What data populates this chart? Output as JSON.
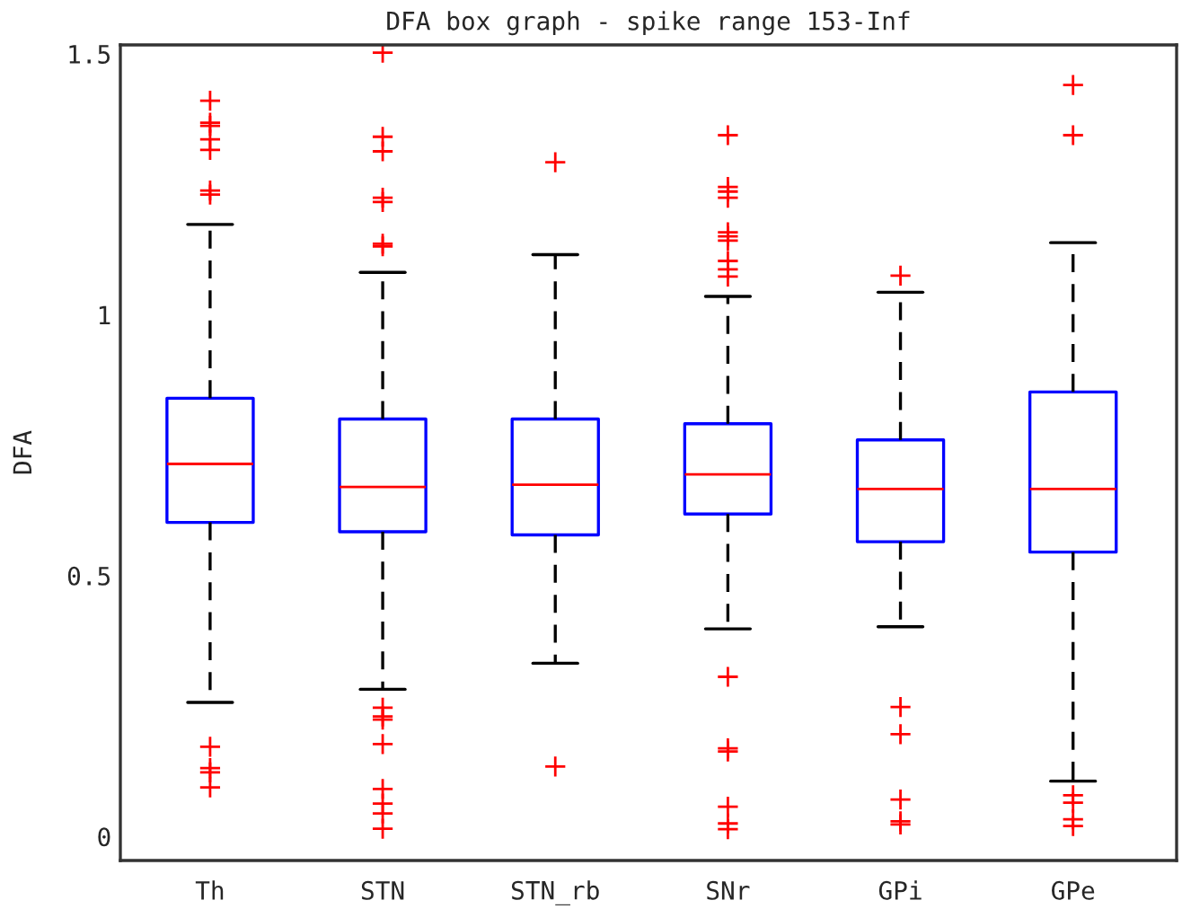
{
  "chart_data": {
    "type": "box",
    "title": "DFA box graph - spike range 153-Inf",
    "ylabel": "DFA",
    "categories": [
      "Th",
      "STN",
      "STN_rb",
      "SNr",
      "GPi",
      "GPe"
    ],
    "ylim": [
      -0.046,
      1.517
    ],
    "yticks": [
      0,
      0.5,
      1,
      1.5
    ],
    "marker": "cross",
    "series": [
      {
        "color": "#0000ff",
        "boxes": [
          {
            "low": 0.257,
            "q1": 0.602,
            "median": 0.714,
            "q3": 0.84,
            "high": 1.173,
            "outliers": [
              1.41,
              1.368,
              1.362,
              1.336,
              1.316,
              1.238,
              1.23,
              0.172,
              0.131,
              0.123,
              0.094
            ]
          },
          {
            "low": 0.282,
            "q1": 0.584,
            "median": 0.67,
            "q3": 0.8,
            "high": 1.081,
            "outliers": [
              1.502,
              1.341,
              1.313,
              1.224,
              1.216,
              1.136,
              1.131,
              0.247,
              0.23,
              0.224,
              0.177,
              0.091,
              0.063,
              0.044,
              0.015
            ]
          },
          {
            "low": 0.332,
            "q1": 0.578,
            "median": 0.674,
            "q3": 0.8,
            "high": 1.115,
            "outliers": [
              1.292,
              0.134
            ]
          },
          {
            "low": 0.398,
            "q1": 0.618,
            "median": 0.694,
            "q3": 0.791,
            "high": 1.035,
            "outliers": [
              1.344,
              1.245,
              1.236,
              1.224,
              1.158,
              1.15,
              1.142,
              1.103,
              1.087,
              1.073,
              0.306,
              0.169,
              0.163,
              0.057,
              0.025,
              0.014
            ]
          },
          {
            "low": 0.402,
            "q1": 0.565,
            "median": 0.666,
            "q3": 0.76,
            "high": 1.043,
            "outliers": [
              1.075,
              0.248,
              0.196,
              0.071,
              0.029,
              0.023
            ]
          },
          {
            "low": 0.106,
            "q1": 0.545,
            "median": 0.666,
            "q3": 0.852,
            "high": 1.138,
            "outliers": [
              1.44,
              1.344,
              0.079,
              0.065,
              0.033,
              0.02
            ]
          }
        ]
      }
    ]
  }
}
